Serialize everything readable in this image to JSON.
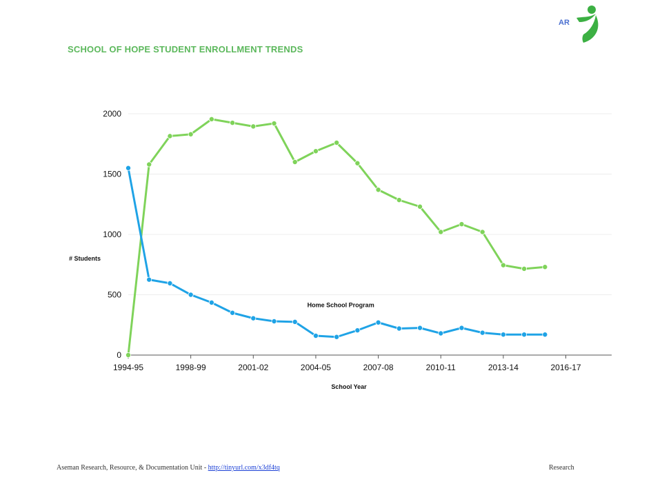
{
  "logo": {
    "text": "AR",
    "accent": "#3cb043",
    "text_color": "#4a6fd0"
  },
  "chart_data": {
    "type": "line",
    "title": "SCHOOL OF HOPE STUDENT ENROLLMENT TRENDS",
    "xlabel": "School Year",
    "ylabel": "# Students",
    "x_tick_labels": [
      "1994-95",
      "1998-99",
      "2001-02",
      "2004-05",
      "2007-08",
      "2010-11",
      "2013-14",
      "2016-17"
    ],
    "x_tick_indices": [
      0,
      3,
      6,
      9,
      12,
      15,
      18,
      21
    ],
    "y_ticks": [
      0,
      500,
      1000,
      1500,
      2000
    ],
    "ylim": [
      0,
      2000
    ],
    "xlim_index": [
      0,
      23.2
    ],
    "grid": true,
    "series": [
      {
        "name": "",
        "color": "#7fd35a",
        "values": [
          0,
          1580,
          1815,
          1830,
          1955,
          1925,
          1895,
          1920,
          1600,
          1690,
          1760,
          1590,
          1370,
          1285,
          1230,
          1020,
          1085,
          1020,
          745,
          715,
          730
        ]
      },
      {
        "name": "Home School Program",
        "color": "#1fa3e6",
        "values": [
          1550,
          625,
          595,
          500,
          435,
          350,
          305,
          280,
          275,
          160,
          150,
          205,
          270,
          220,
          225,
          180,
          225,
          185,
          170,
          170,
          170
        ]
      }
    ],
    "annotations": [
      {
        "text": "Home School Program",
        "x_index": 10.2,
        "y": 415
      }
    ]
  },
  "footer": {
    "left_text": "Aseman Research, Resource, & Documentation Unit - ",
    "link_text": "http://tinyurl.com/x3df4tq",
    "right_text": "Research"
  }
}
